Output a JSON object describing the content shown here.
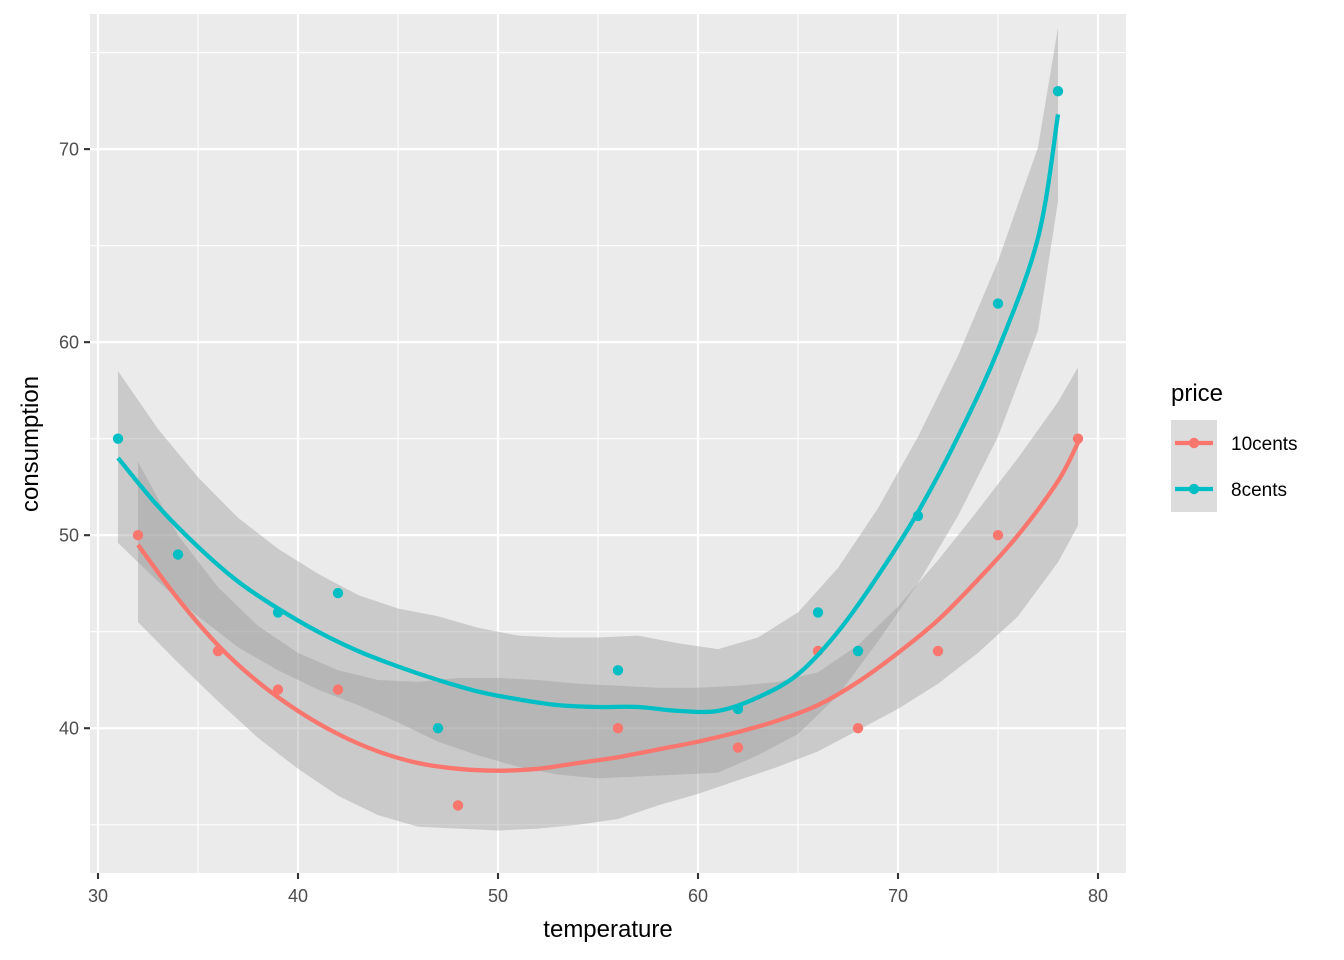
{
  "chart_data": {
    "type": "scatter",
    "title": "",
    "xlabel": "temperature",
    "ylabel": "consumption",
    "xlim": [
      29.6,
      81.4
    ],
    "ylim": [
      32.5,
      77.0
    ],
    "x_ticks": [
      30,
      40,
      50,
      60,
      70,
      80
    ],
    "y_ticks": [
      40,
      50,
      60,
      70
    ],
    "grid": true,
    "legend": {
      "title": "price",
      "position": "right"
    },
    "smooth": "loess with 95% confidence band",
    "series": [
      {
        "name": "10cents",
        "color": "#F8766D",
        "points": [
          [
            32,
            50
          ],
          [
            36,
            44
          ],
          [
            39,
            42
          ],
          [
            42,
            42
          ],
          [
            48,
            36
          ],
          [
            56,
            40
          ],
          [
            62,
            39
          ],
          [
            66,
            44
          ],
          [
            68,
            40
          ],
          [
            72,
            44
          ],
          [
            75,
            50
          ],
          [
            79,
            55
          ]
        ],
        "fit": [
          [
            32,
            49.5
          ],
          [
            34,
            46.7
          ],
          [
            36,
            44.3
          ],
          [
            38,
            42.4
          ],
          [
            40,
            40.9
          ],
          [
            42,
            39.7
          ],
          [
            44,
            38.8
          ],
          [
            46,
            38.2
          ],
          [
            48,
            37.9
          ],
          [
            50,
            37.8
          ],
          [
            52,
            37.9
          ],
          [
            54,
            38.2
          ],
          [
            56,
            38.5
          ],
          [
            58,
            38.9
          ],
          [
            60,
            39.3
          ],
          [
            62,
            39.8
          ],
          [
            64,
            40.4
          ],
          [
            66,
            41.2
          ],
          [
            68,
            42.4
          ],
          [
            70,
            43.9
          ],
          [
            72,
            45.6
          ],
          [
            74,
            47.7
          ],
          [
            76,
            50.0
          ],
          [
            78,
            52.8
          ],
          [
            79,
            54.8
          ]
        ],
        "band_upper": [
          53.8,
          50.0,
          47.3,
          45.3,
          43.9,
          43.0,
          42.5,
          42.4,
          42.6,
          42.6,
          42.5,
          42.3,
          42.2,
          42.1,
          42.1,
          42.2,
          42.4,
          42.9,
          44.3,
          46.3,
          48.7,
          51.3,
          54.0,
          56.9,
          58.7
        ],
        "band_lower": [
          45.5,
          43.4,
          41.4,
          39.5,
          37.9,
          36.5,
          35.5,
          34.9,
          34.8,
          34.7,
          34.8,
          35.0,
          35.3,
          36.0,
          36.6,
          37.3,
          38.0,
          38.8,
          39.9,
          41.0,
          42.3,
          43.9,
          45.8,
          48.6,
          50.5
        ]
      },
      {
        "name": "8cents",
        "color": "#00BFC4",
        "points": [
          [
            31,
            55
          ],
          [
            34,
            49
          ],
          [
            39,
            46
          ],
          [
            42,
            47
          ],
          [
            47,
            40
          ],
          [
            56,
            43
          ],
          [
            62,
            41
          ],
          [
            66,
            46
          ],
          [
            68,
            44
          ],
          [
            71,
            51
          ],
          [
            75,
            62
          ],
          [
            78,
            73
          ]
        ],
        "fit": [
          [
            31,
            54.0
          ],
          [
            33,
            51.5
          ],
          [
            35,
            49.4
          ],
          [
            37,
            47.6
          ],
          [
            39,
            46.2
          ],
          [
            41,
            45.0
          ],
          [
            43,
            44.0
          ],
          [
            45,
            43.2
          ],
          [
            47,
            42.5
          ],
          [
            49,
            41.9
          ],
          [
            51,
            41.5
          ],
          [
            53,
            41.2
          ],
          [
            55,
            41.1
          ],
          [
            57,
            41.1
          ],
          [
            59,
            40.9
          ],
          [
            61,
            40.9
          ],
          [
            63,
            41.6
          ],
          [
            65,
            42.8
          ],
          [
            67,
            45.0
          ],
          [
            69,
            47.9
          ],
          [
            71,
            51.2
          ],
          [
            73,
            55.1
          ],
          [
            75,
            59.6
          ],
          [
            77,
            65.4
          ],
          [
            78,
            71.8
          ]
        ],
        "band_upper": [
          58.5,
          55.5,
          53.0,
          50.9,
          49.3,
          48.0,
          46.9,
          46.2,
          45.8,
          45.2,
          44.8,
          44.7,
          44.7,
          44.8,
          44.4,
          44.1,
          44.7,
          46.0,
          48.3,
          51.4,
          55.1,
          59.3,
          64.2,
          70.1,
          76.3
        ],
        "band_lower": [
          49.6,
          47.6,
          45.8,
          44.2,
          43.0,
          42.0,
          41.2,
          40.3,
          39.3,
          38.6,
          38.0,
          37.6,
          37.4,
          37.5,
          37.6,
          37.7,
          38.6,
          39.7,
          41.7,
          44.5,
          47.5,
          51.0,
          55.1,
          60.6,
          67.3
        ]
      }
    ]
  }
}
